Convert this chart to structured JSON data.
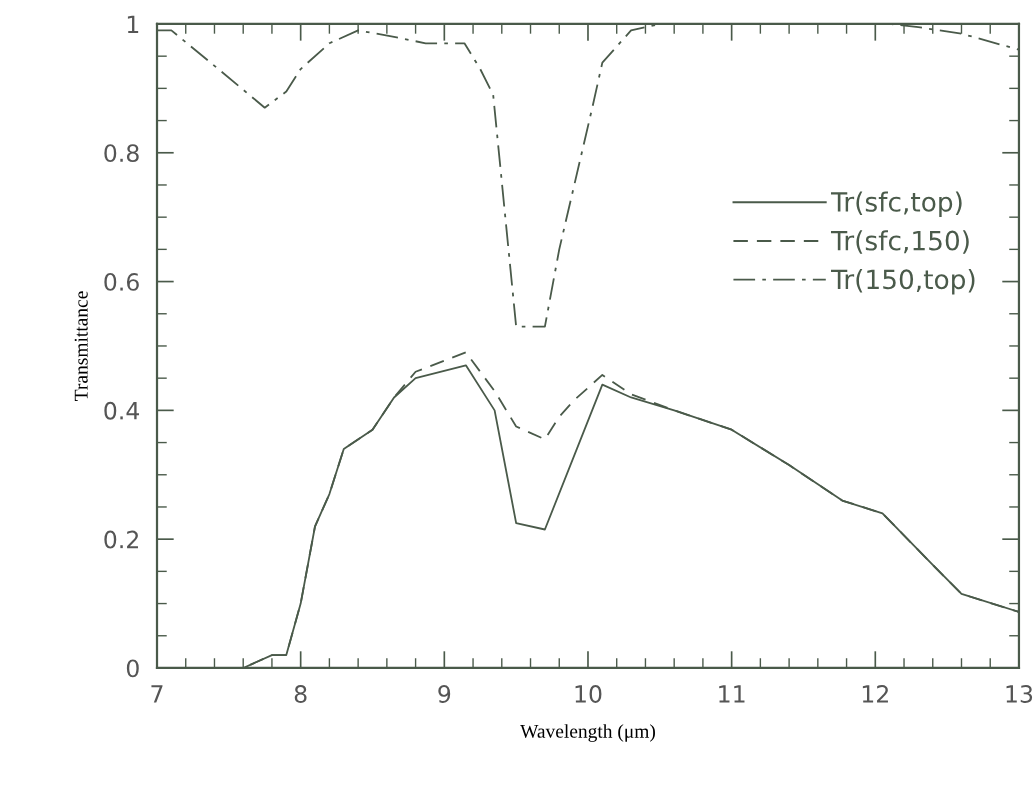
{
  "chart_data": {
    "type": "line",
    "xlabel": "Wavelength (μm)",
    "ylabel": "Transmittance",
    "xlim": [
      7,
      13
    ],
    "ylim": [
      0,
      1
    ],
    "xticks": [
      7,
      {
        "value": 7.2,
        "label": null
      },
      {
        "value": 7.4,
        "label": null
      },
      {
        "value": 7.6,
        "label": null
      },
      {
        "value": 7.8,
        "label": null
      },
      8,
      {
        "value": 8.2,
        "label": null
      },
      {
        "value": 8.4,
        "label": null
      },
      {
        "value": 8.6,
        "label": null
      },
      {
        "value": 8.8,
        "label": null
      },
      9,
      {
        "value": 9.2,
        "label": null
      },
      {
        "value": 9.4,
        "label": null
      },
      {
        "value": 9.6,
        "label": null
      },
      {
        "value": 9.8,
        "label": null
      },
      10,
      {
        "value": 10.2,
        "label": null
      },
      {
        "value": 10.4,
        "label": null
      },
      {
        "value": 10.6,
        "label": null
      },
      {
        "value": 10.8,
        "label": null
      },
      11,
      {
        "value": 11.2,
        "label": null
      },
      {
        "value": 11.4,
        "label": null
      },
      {
        "value": 11.6,
        "label": null
      },
      {
        "value": 11.8,
        "label": null
      },
      12,
      {
        "value": 12.2,
        "label": null
      },
      {
        "value": 12.4,
        "label": null
      },
      {
        "value": 12.6,
        "label": null
      },
      {
        "value": 12.8,
        "label": null
      },
      13
    ],
    "yticks": [
      0,
      {
        "value": 0.05,
        "label": null
      },
      {
        "value": 0.1,
        "label": null
      },
      {
        "value": 0.15,
        "label": null
      },
      0.2,
      {
        "value": 0.25,
        "label": null
      },
      {
        "value": 0.3,
        "label": null
      },
      {
        "value": 0.35,
        "label": null
      },
      0.4,
      {
        "value": 0.45,
        "label": null
      },
      {
        "value": 0.5,
        "label": null
      },
      {
        "value": 0.55,
        "label": null
      },
      0.6,
      {
        "value": 0.65,
        "label": null
      },
      {
        "value": 0.7,
        "label": null
      },
      {
        "value": 0.75,
        "label": null
      },
      0.8,
      {
        "value": 0.85,
        "label": null
      },
      {
        "value": 0.9,
        "label": null
      },
      {
        "value": 0.95,
        "label": null
      },
      1
    ],
    "legend": "center right",
    "grid": false,
    "marker": "none",
    "series": [
      {
        "name": "Tr(sfc,top)",
        "color": "#4a5a4a",
        "line_style": "solid",
        "x": [
          7.0,
          7.6,
          7.8,
          7.9,
          8.0,
          8.1,
          8.2,
          8.3,
          8.5,
          8.65,
          8.8,
          9.15,
          9.35,
          9.5,
          9.7,
          10.1,
          10.3,
          10.6,
          11.0,
          11.4,
          11.77,
          12.05,
          12.4,
          12.6,
          13.0
        ],
        "values": [
          0.0,
          0.0,
          0.02,
          0.02,
          0.1,
          0.22,
          0.27,
          0.34,
          0.37,
          0.42,
          0.45,
          0.47,
          0.4,
          0.225,
          0.215,
          0.44,
          0.42,
          0.4,
          0.37,
          0.315,
          0.26,
          0.24,
          0.16,
          0.115,
          0.087
        ]
      },
      {
        "name": "Tr(sfc,150)",
        "color": "#4a5a4a",
        "line_style": "dashed",
        "x": [
          7.0,
          7.6,
          7.8,
          7.9,
          8.0,
          8.1,
          8.2,
          8.3,
          8.5,
          8.65,
          8.8,
          9.15,
          9.35,
          9.5,
          9.7,
          9.8,
          9.9,
          10.1,
          10.3,
          10.6,
          11.0,
          11.4,
          11.77,
          12.05,
          12.4,
          12.6,
          13.0
        ],
        "values": [
          0.0,
          0.0,
          0.02,
          0.02,
          0.1,
          0.22,
          0.27,
          0.34,
          0.37,
          0.42,
          0.46,
          0.49,
          0.43,
          0.375,
          0.355,
          0.39,
          0.415,
          0.455,
          0.425,
          0.4,
          0.37,
          0.315,
          0.26,
          0.24,
          0.16,
          0.115,
          0.087
        ]
      },
      {
        "name": "Tr(150,top)",
        "color": "#4a5a4a",
        "line_style": "dashdot",
        "x": [
          7.0,
          7.1,
          7.4,
          7.75,
          7.9,
          8.0,
          8.2,
          8.4,
          8.65,
          8.87,
          9.14,
          9.25,
          9.34,
          9.5,
          9.7,
          9.8,
          10.03,
          10.1,
          10.3,
          10.5,
          12.1,
          12.3,
          12.6,
          13.0
        ],
        "values": [
          0.99,
          0.99,
          0.935,
          0.87,
          0.895,
          0.93,
          0.97,
          0.99,
          0.98,
          0.97,
          0.97,
          0.93,
          0.89,
          0.53,
          0.53,
          0.65,
          0.87,
          0.94,
          0.99,
          1.0,
          1.0,
          0.995,
          0.985,
          0.96
        ]
      }
    ]
  }
}
